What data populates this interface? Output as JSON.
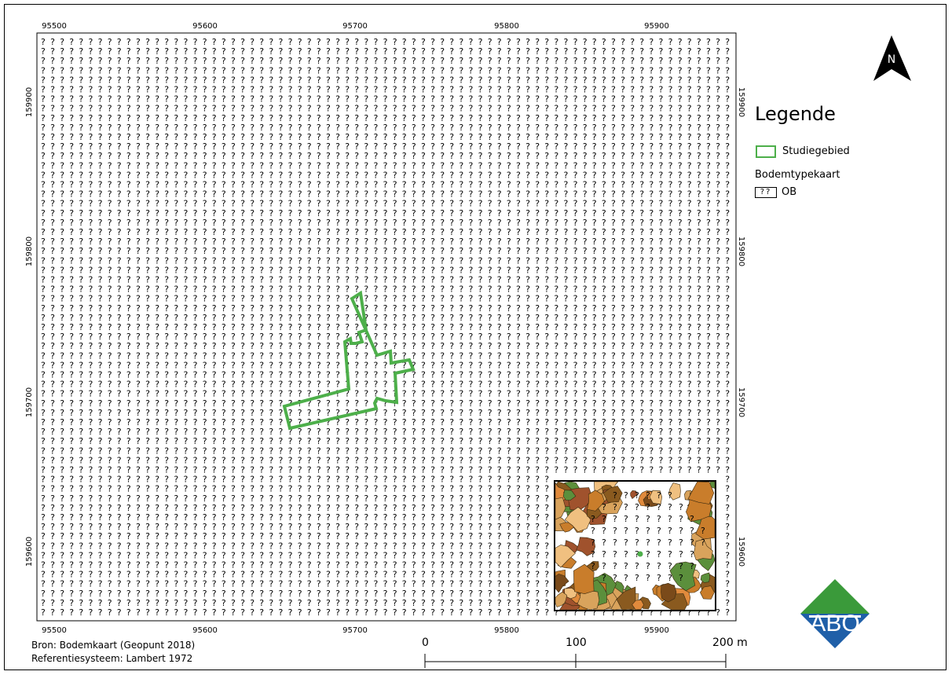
{
  "map": {
    "x_ticks": [
      "95500",
      "95600",
      "95700",
      "95800",
      "95900"
    ],
    "y_ticks": [
      "159900",
      "159800",
      "159700",
      "159600"
    ],
    "fill_symbol": "?",
    "study_area_color": "#4daf4a"
  },
  "legend": {
    "title": "Legende",
    "items": [
      {
        "label": "Studiegebied",
        "symbol": "green-outline"
      },
      {
        "label": "Bodemtypekaart",
        "symbol": "heading"
      },
      {
        "label": "OB",
        "symbol": "question-pattern"
      }
    ],
    "pattern_text": "??"
  },
  "north_arrow": {
    "label": "N"
  },
  "footer": {
    "source": "Bron: Bodemkaart (Geopunt 2018)",
    "crs": "Referentiesysteem: Lambert 1972"
  },
  "scalebar": {
    "labels": [
      "0",
      "100",
      "200 m"
    ]
  },
  "logo": {
    "text": "ABO",
    "colors": {
      "top": "#3a9a3a",
      "bottom": "#1f5fa8",
      "band": "#ffffff"
    }
  },
  "inset": {
    "colors": [
      "#c97d2b",
      "#8a5a1f",
      "#d9a35c",
      "#5b8f3c",
      "#f0c080",
      "#a0522d",
      "#e08a3c",
      "#7a4a1a"
    ]
  }
}
